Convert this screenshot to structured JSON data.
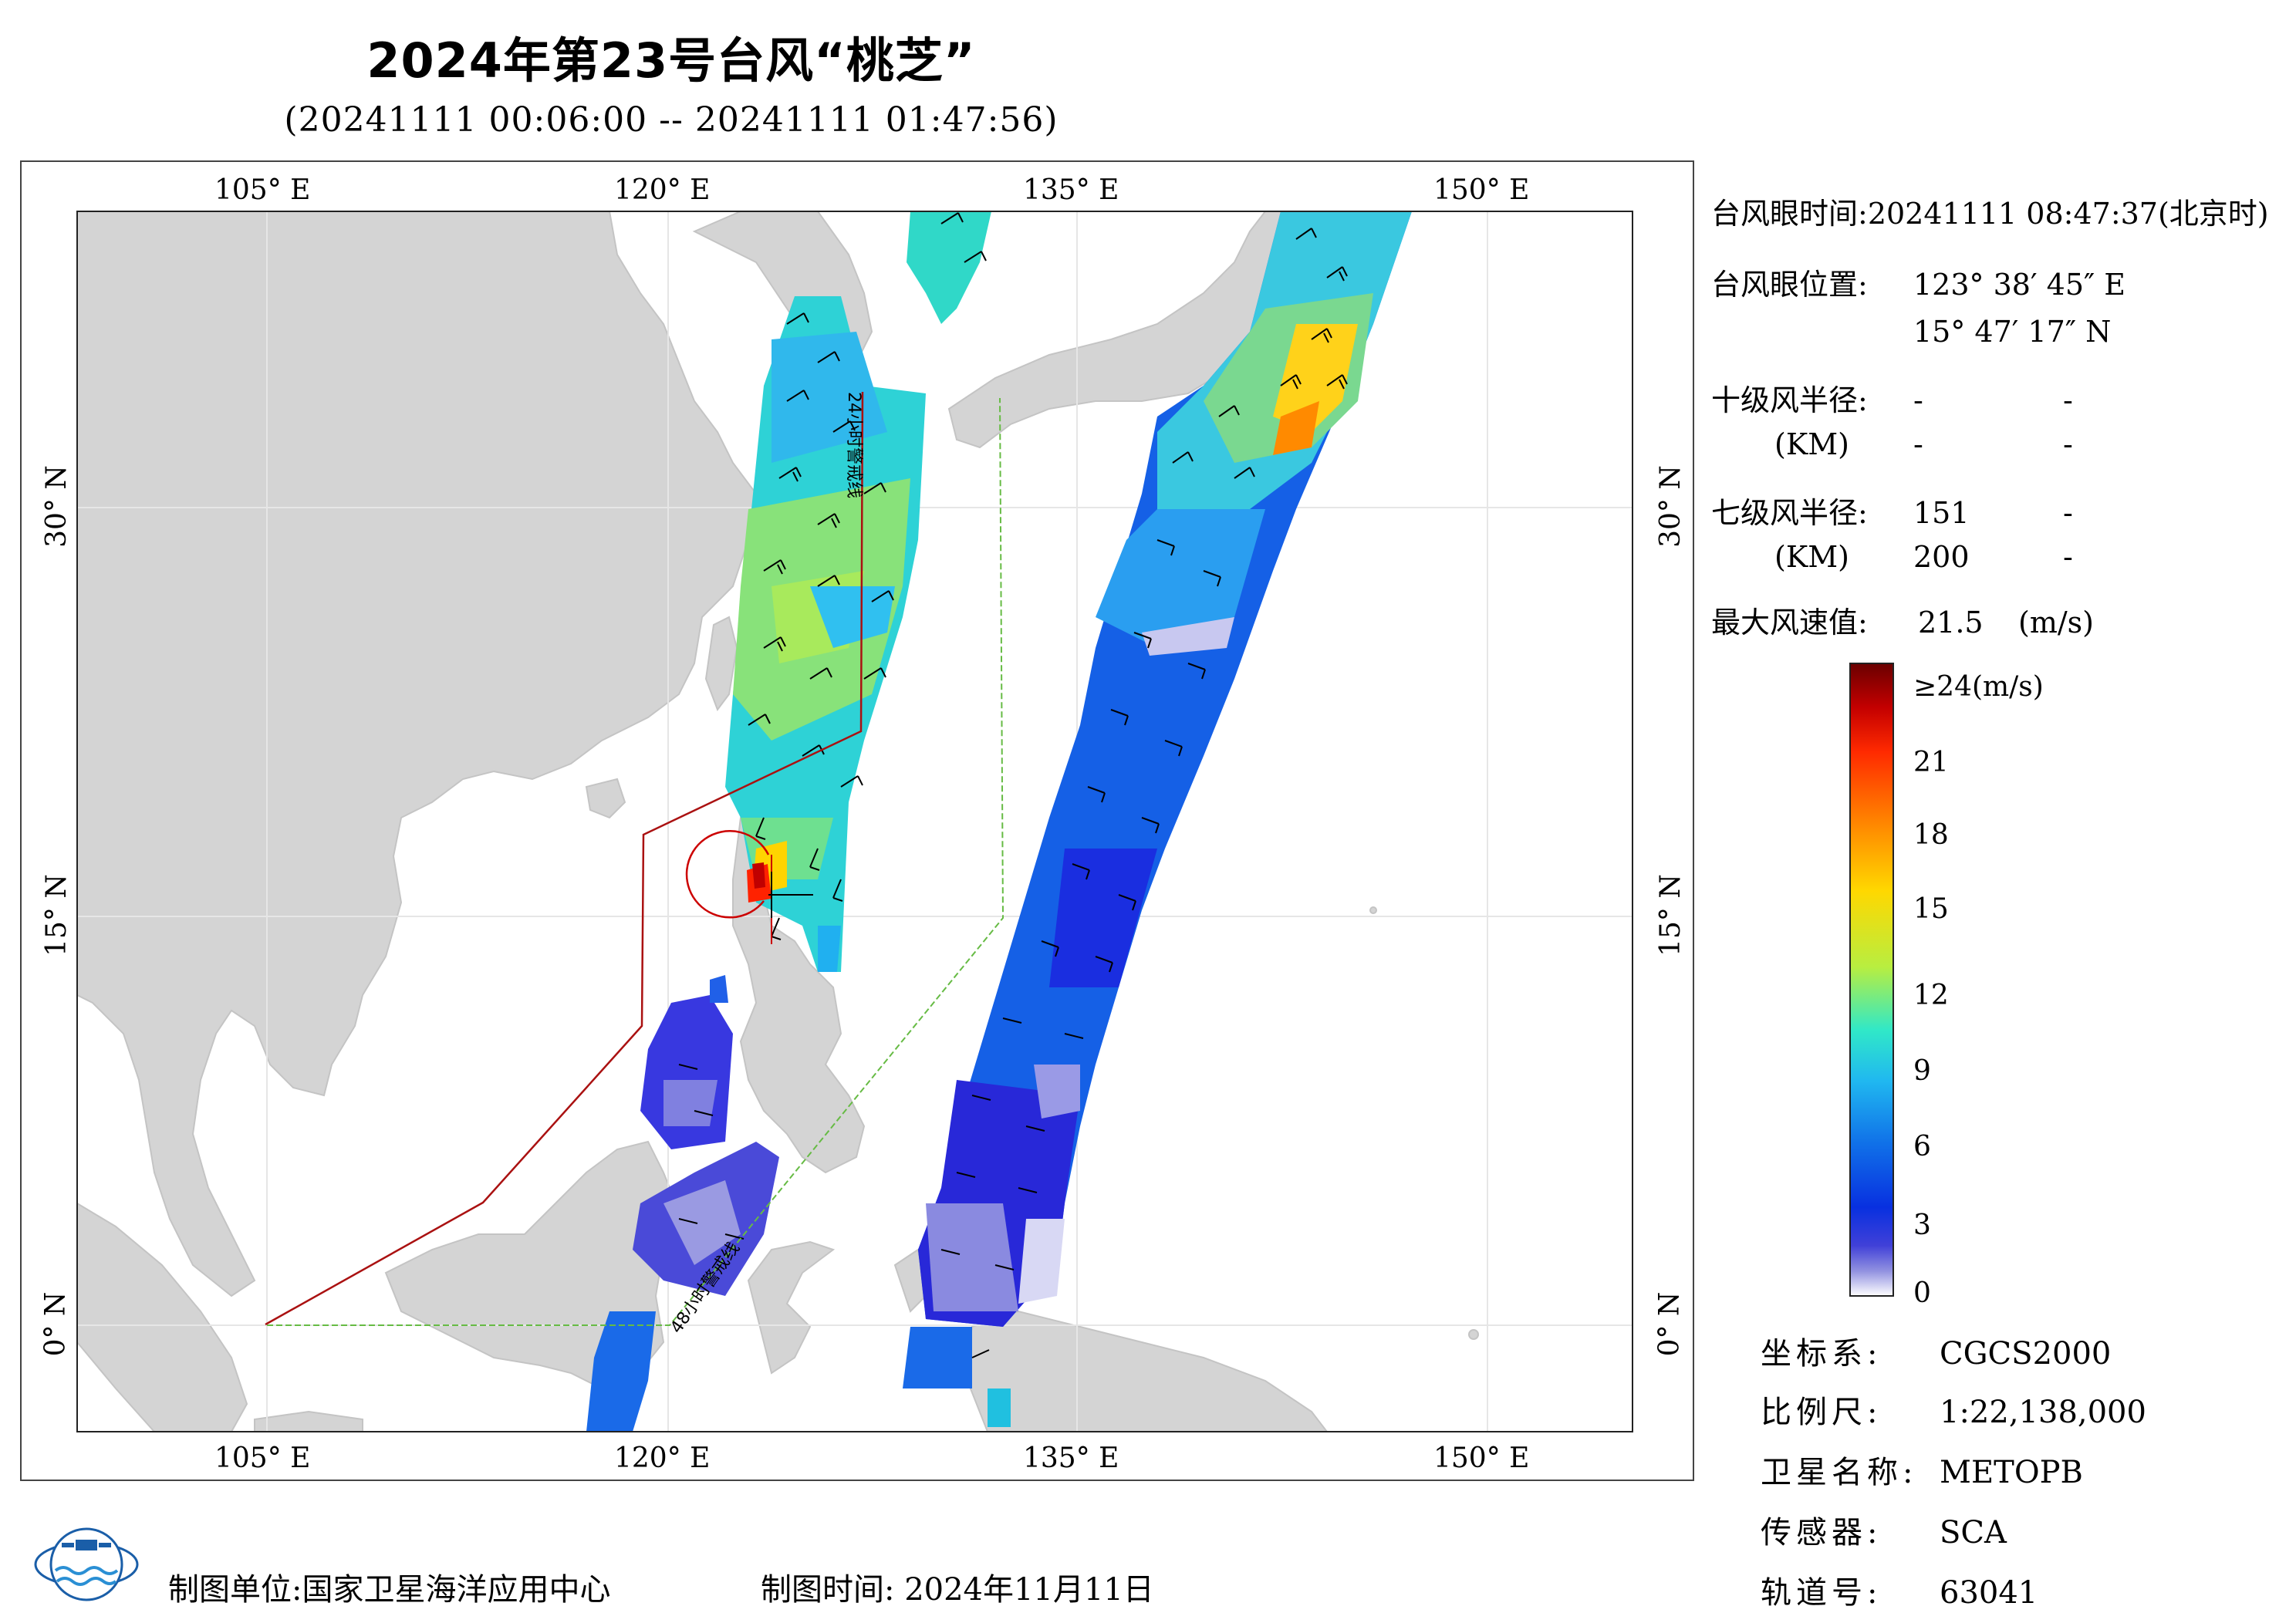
{
  "title": "2024年第23号台风“桃芝”",
  "subtitle": "(20241111 00:06:00 -- 20241111 01:47:56)",
  "map": {
    "lon_ticks": [
      "105° E",
      "120° E",
      "135° E",
      "150° E"
    ],
    "lat_ticks": [
      "30° N",
      "15° N",
      "0° N"
    ],
    "line_labels": {
      "warning_24h": "24小时警戒线",
      "warning_48h": "48小时警戒线"
    },
    "colors": {
      "land": "#d4d4d4",
      "ocean": "#ffffff",
      "warning_24h": "#aa1111",
      "warning_48h": "#66bb44"
    },
    "typhoon_eye": {
      "lon": 123.646,
      "lat": 15.788
    }
  },
  "info_panel": {
    "eye_time_label": "台风眼时间:",
    "eye_time_value": "20241111 08:47:37(北京时)",
    "eye_pos_label": "台风眼位置:",
    "eye_lon": "123° 38′ 45″ E",
    "eye_lat": "15° 47′ 17″ N",
    "r10_label": "十级风半径:",
    "r10_unit": "(KM)",
    "r10_values": [
      "-",
      "-",
      "-",
      "-"
    ],
    "r7_label": "七级风半径:",
    "r7_unit": "(KM)",
    "r7_values": [
      "151",
      "-",
      "200",
      "-"
    ],
    "max_wind_label": "最大风速值:",
    "max_wind_value": "21.5",
    "max_wind_unit": "(m/s)"
  },
  "colorbar": {
    "labels": [
      "≥24(m/s)",
      "21",
      "18",
      "15",
      "12",
      "9",
      "6",
      "3",
      "0"
    ],
    "stops": [
      "#6a0000",
      "#c40000",
      "#ff2a00",
      "#ff8c00",
      "#ffd800",
      "#b8ee40",
      "#30e8c8",
      "#20b8f0",
      "#1070e8",
      "#0830e0",
      "#4040d8",
      "#9090e0",
      "#ffffff"
    ]
  },
  "metadata": [
    {
      "key": "坐标系:",
      "value": "CGCS2000"
    },
    {
      "key": "比例尺:",
      "value": "1:22,138,000"
    },
    {
      "key": "卫星名称:",
      "value": "METOPB"
    },
    {
      "key": "传感器:",
      "value": "SCA"
    },
    {
      "key": "轨道号:",
      "value": "63041"
    }
  ],
  "footer": {
    "org": "制图单位:国家卫星海洋应用中心",
    "time": "制图时间: 2024年11月11日"
  }
}
